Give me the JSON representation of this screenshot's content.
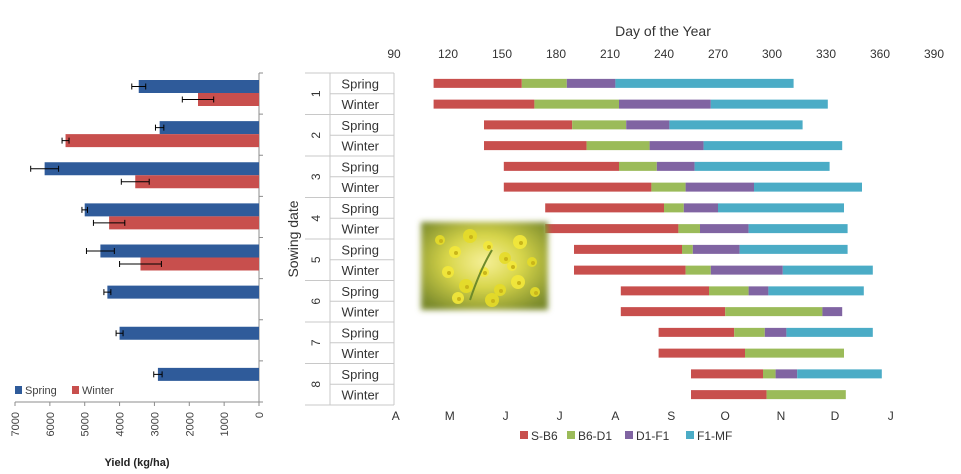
{
  "chart_data": [
    {
      "type": "bar",
      "orientation": "horizontal",
      "xlabel": "Yield (kg/ha)",
      "xlim": [
        0,
        7000
      ],
      "ticks": [
        0,
        1000,
        2000,
        3000,
        4000,
        5000,
        6000,
        7000
      ],
      "tick_labels": [
        "0",
        "1000",
        "2000",
        "3000",
        "4000",
        "5000",
        "6000",
        "7000"
      ],
      "legend": [
        {
          "name": "Spring",
          "color": "#2f5b9a"
        },
        {
          "name": "Winter",
          "color": "#c84f4d"
        }
      ],
      "groups": [
        {
          "date": "1",
          "spring": 3450,
          "spring_err": 200,
          "winter": 1750,
          "winter_err": 450
        },
        {
          "date": "2",
          "spring": 2850,
          "spring_err": 120,
          "winter": 5550,
          "winter_err": 100
        },
        {
          "date": "3",
          "spring": 6150,
          "spring_err": 400,
          "winter": 3550,
          "winter_err": 400
        },
        {
          "date": "4",
          "spring": 5000,
          "spring_err": 80,
          "winter": 4300,
          "winter_err": 450
        },
        {
          "date": "5",
          "spring": 4550,
          "spring_err": 400,
          "winter": 3400,
          "winter_err": 600
        },
        {
          "date": "6",
          "spring": 4350,
          "spring_err": 100,
          "winter": null,
          "winter_err": null
        },
        {
          "date": "7",
          "spring": 4000,
          "spring_err": 100,
          "winter": null,
          "winter_err": null
        },
        {
          "date": "8",
          "spring": 2900,
          "spring_err": 120,
          "winter": null,
          "winter_err": null
        }
      ]
    },
    {
      "type": "bar",
      "stacked": true,
      "orientation": "horizontal",
      "title": "Day of the Year",
      "ylabel": "Sowing date",
      "xlim": [
        90,
        390
      ],
      "ticks": [
        90,
        120,
        150,
        180,
        210,
        240,
        270,
        300,
        330,
        360,
        390
      ],
      "tick_labels": [
        "90",
        "120",
        "150",
        "180",
        "210",
        "240",
        "270",
        "300",
        "330",
        "360",
        "390"
      ],
      "months": [
        "A",
        "M",
        "J",
        "J",
        "A",
        "S",
        "O",
        "N",
        "D",
        "J"
      ],
      "month_days": [
        91,
        121,
        152,
        182,
        213,
        244,
        274,
        305,
        335,
        366
      ],
      "series": [
        {
          "name": "S-B6",
          "color": "#c84f4d"
        },
        {
          "name": "B6-D1",
          "color": "#9bbb59"
        },
        {
          "name": "D1-F1",
          "color": "#8064a2"
        },
        {
          "name": "F1-MF",
          "color": "#4bacc6"
        }
      ],
      "dates": [
        "1",
        "2",
        "3",
        "4",
        "5",
        "6",
        "7",
        "8"
      ],
      "season_labels": [
        "Spring",
        "Winter"
      ],
      "rows": [
        {
          "date": "1",
          "season": "Spring",
          "start": 112,
          "phases": [
            161,
            186,
            213,
            312
          ]
        },
        {
          "date": "1",
          "season": "Winter",
          "start": 112,
          "phases": [
            168,
            215,
            266,
            331
          ]
        },
        {
          "date": "2",
          "season": "Spring",
          "start": 140,
          "phases": [
            189,
            219,
            243,
            317
          ]
        },
        {
          "date": "2",
          "season": "Winter",
          "start": 140,
          "phases": [
            197,
            232,
            262,
            339
          ]
        },
        {
          "date": "3",
          "season": "Spring",
          "start": 151,
          "phases": [
            215,
            236,
            257,
            332
          ]
        },
        {
          "date": "3",
          "season": "Winter",
          "start": 151,
          "phases": [
            233,
            252,
            290,
            350
          ]
        },
        {
          "date": "4",
          "season": "Spring",
          "start": 174,
          "phases": [
            240,
            251,
            270,
            340
          ]
        },
        {
          "date": "4",
          "season": "Winter",
          "start": 174,
          "phases": [
            248,
            260,
            287,
            342
          ]
        },
        {
          "date": "5",
          "season": "Spring",
          "start": 190,
          "phases": [
            250,
            256,
            282,
            342
          ]
        },
        {
          "date": "5",
          "season": "Winter",
          "start": 190,
          "phases": [
            252,
            266,
            306,
            356
          ]
        },
        {
          "date": "6",
          "season": "Spring",
          "start": 216,
          "phases": [
            265,
            287,
            298,
            351
          ]
        },
        {
          "date": "6",
          "season": "Winter",
          "start": 216,
          "phases": [
            274,
            328,
            339
          ]
        },
        {
          "date": "7",
          "season": "Spring",
          "start": 237,
          "phases": [
            279,
            296,
            308,
            356
          ]
        },
        {
          "date": "7",
          "season": "Winter",
          "start": 237,
          "phases": [
            285,
            340
          ]
        },
        {
          "date": "8",
          "season": "Spring",
          "start": 255,
          "phases": [
            295,
            302,
            314,
            361
          ]
        },
        {
          "date": "8",
          "season": "Winter",
          "start": 255,
          "phases": [
            297,
            341
          ]
        }
      ]
    }
  ],
  "photo": {
    "name": "rapeseed-flower-photo"
  }
}
